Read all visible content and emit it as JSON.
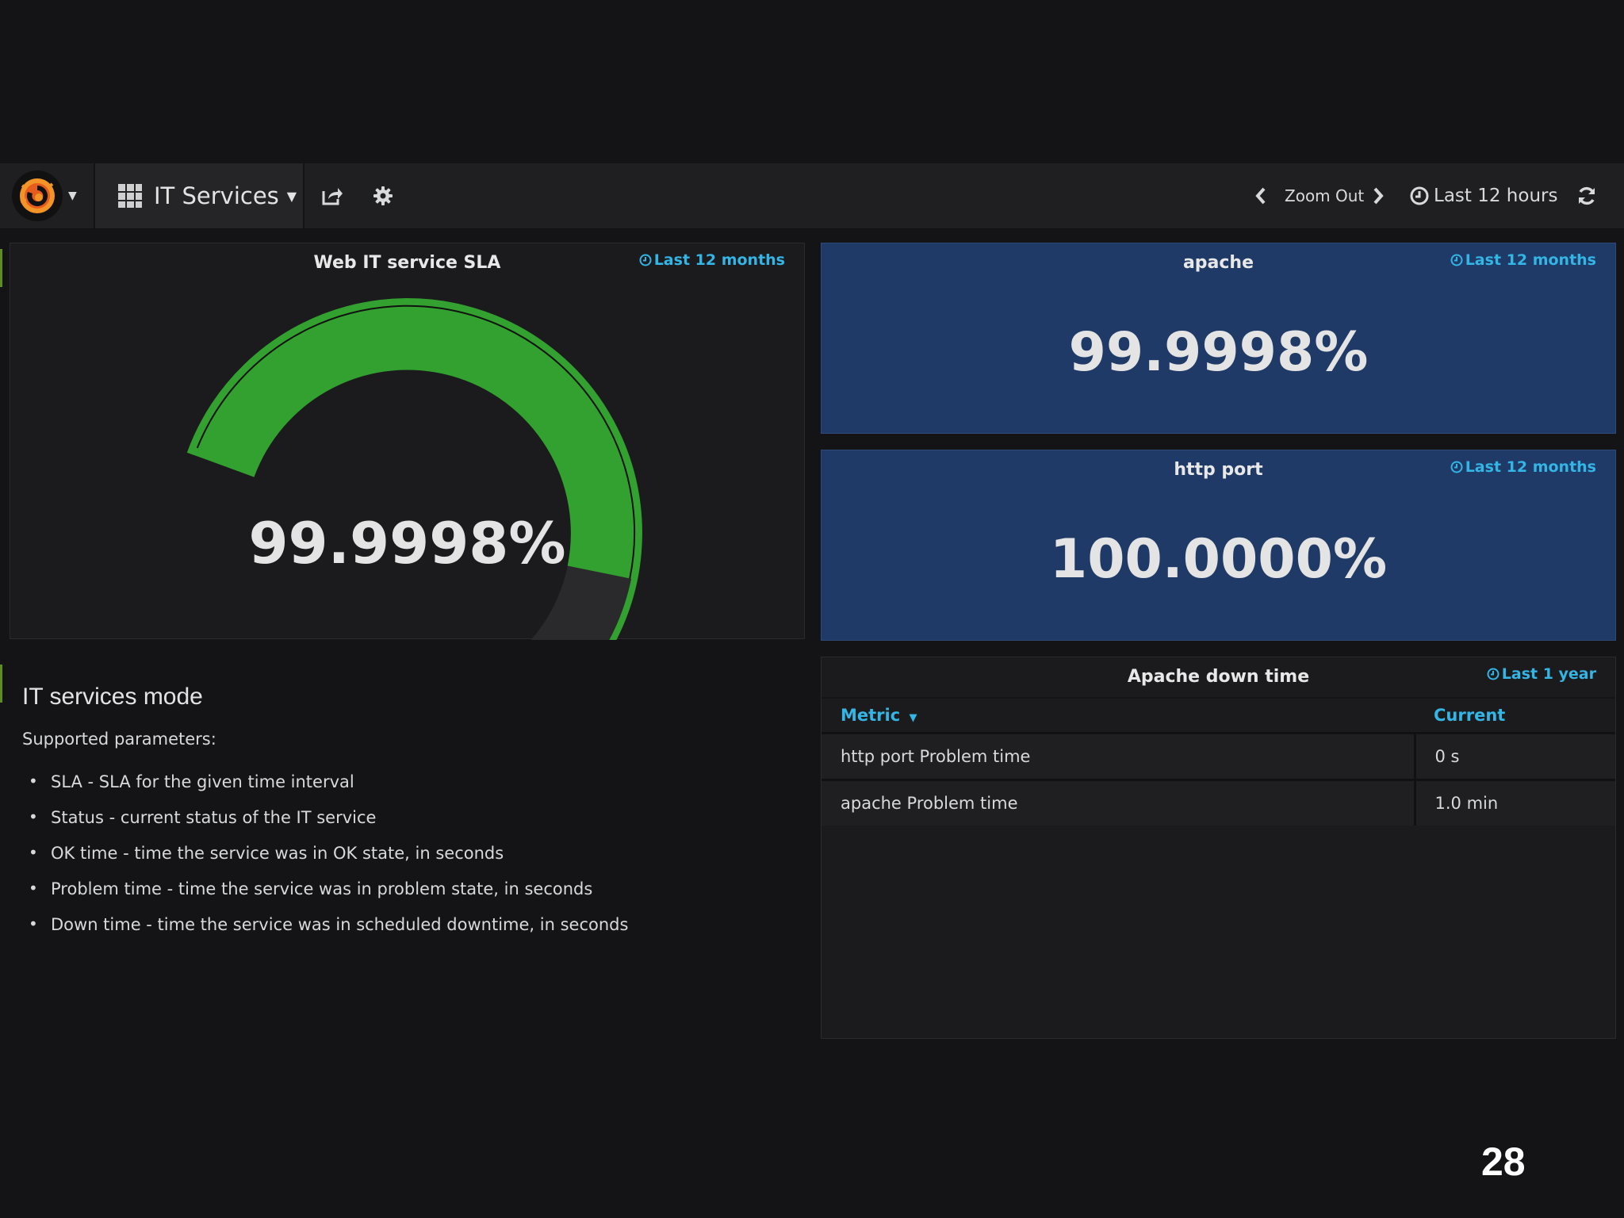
{
  "navbar": {
    "dashboard_title": "IT Services",
    "zoom_out_label": "Zoom Out",
    "time_range_label": "Last 12 hours",
    "icons": [
      "grafana-logo",
      "dashboard-grid-icon",
      "share-icon",
      "gear-icon",
      "chevron-left-icon",
      "chevron-right-icon",
      "clock-icon",
      "refresh-icon"
    ]
  },
  "gauge_panel": {
    "title": "Web IT service SLA",
    "time_info": "Last 12 months",
    "value_text": "99.9998%",
    "fill_fraction": 0.78,
    "color": "#33a12f"
  },
  "apache_panel": {
    "title": "apache",
    "time_info": "Last 12 months",
    "value_text": "99.9998%"
  },
  "http_panel": {
    "title": "http port",
    "time_info": "Last 12 months",
    "value_text": "100.0000%"
  },
  "table_panel": {
    "title": "Apache down time",
    "time_info": "Last 1 year",
    "columns": [
      "Metric",
      "Current"
    ],
    "rows": [
      [
        "http port Problem time",
        "0 s"
      ],
      [
        "apache Problem time",
        "1.0 min"
      ]
    ]
  },
  "text_panel": {
    "heading": "IT services mode",
    "subheading": "Supported parameters:",
    "items": [
      "SLA - SLA for the given time interval",
      "Status - current status of the IT service",
      "OK time - time the service was in OK state, in seconds",
      "Problem time - time the service was in problem state, in seconds",
      "Down time - time the service was in scheduled downtime, in seconds"
    ]
  },
  "slide_number": "28",
  "colors": {
    "accent": "#33b5e5",
    "gauge_green": "#33a12f",
    "stat_blue": "#1f3a66"
  }
}
